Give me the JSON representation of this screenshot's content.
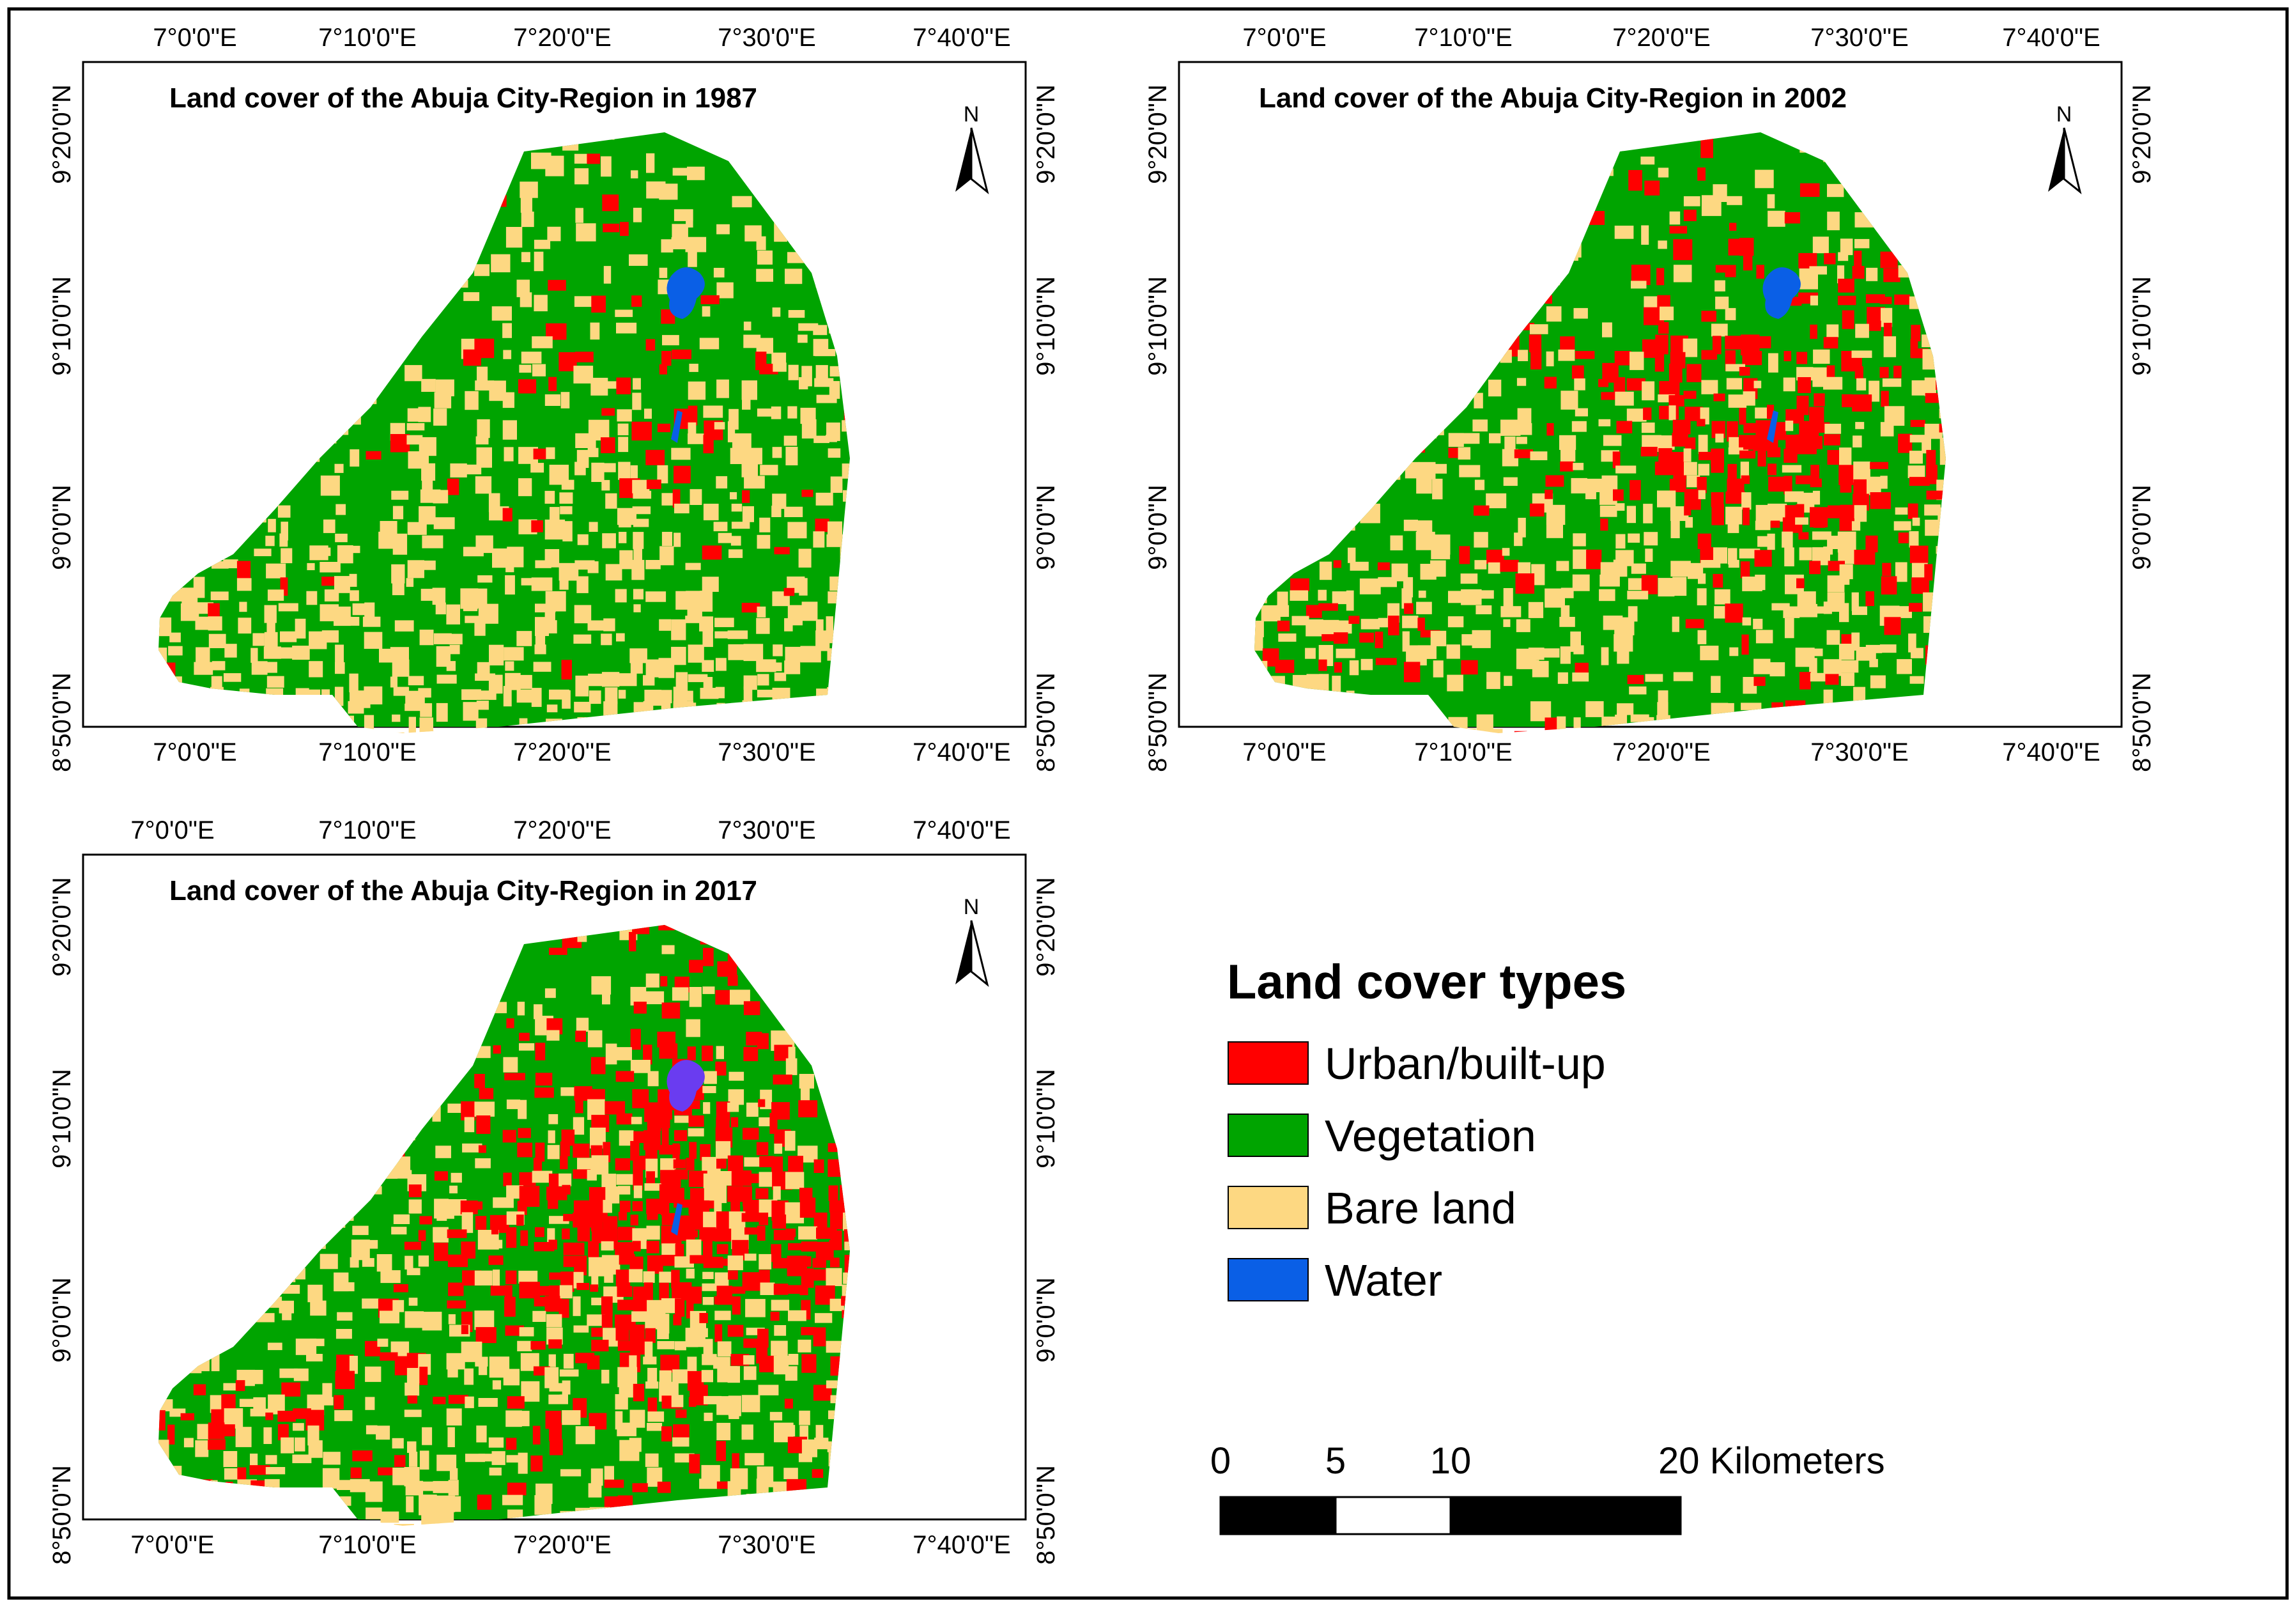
{
  "panels": [
    {
      "title": "Land cover of the Abuja City-Region in 1987",
      "mix": {
        "urban": 0.05,
        "vegetation": 0.62,
        "bare": 0.31,
        "water": 0.02
      }
    },
    {
      "title": "Land cover of the Abuja City-Region in 2002",
      "mix": {
        "urban": 0.2,
        "vegetation": 0.52,
        "bare": 0.26,
        "water": 0.02
      }
    },
    {
      "title": "Land cover of the Abuja City-Region in 2017",
      "mix": {
        "urban": 0.33,
        "vegetation": 0.4,
        "bare": 0.25,
        "water": 0.02
      }
    }
  ],
  "axes": {
    "lon_labels": [
      "7°0'0\"E",
      "7°10'0\"E",
      "7°20'0\"E",
      "7°30'0\"E",
      "7°40'0\"E"
    ],
    "lat_labels": [
      "9°20'0\"N",
      "9°10'0\"N",
      "9°0'0\"N",
      "8°50'0\"N"
    ]
  },
  "north_arrow": {
    "label": "N",
    "icon": "north-arrow-icon"
  },
  "legend": {
    "title": "Land cover types",
    "items": [
      {
        "label": "Urban/built-up",
        "color": "#ff0000"
      },
      {
        "label": "Vegetation",
        "color": "#00a400"
      },
      {
        "label": "Bare land",
        "color": "#fdd882"
      },
      {
        "label": "Water",
        "color": "#0a5fe6"
      }
    ]
  },
  "scale_bar": {
    "labels": [
      "0",
      "5",
      "10",
      "20 Kilometers"
    ],
    "ticks_km": [
      0,
      5,
      10,
      20
    ]
  }
}
